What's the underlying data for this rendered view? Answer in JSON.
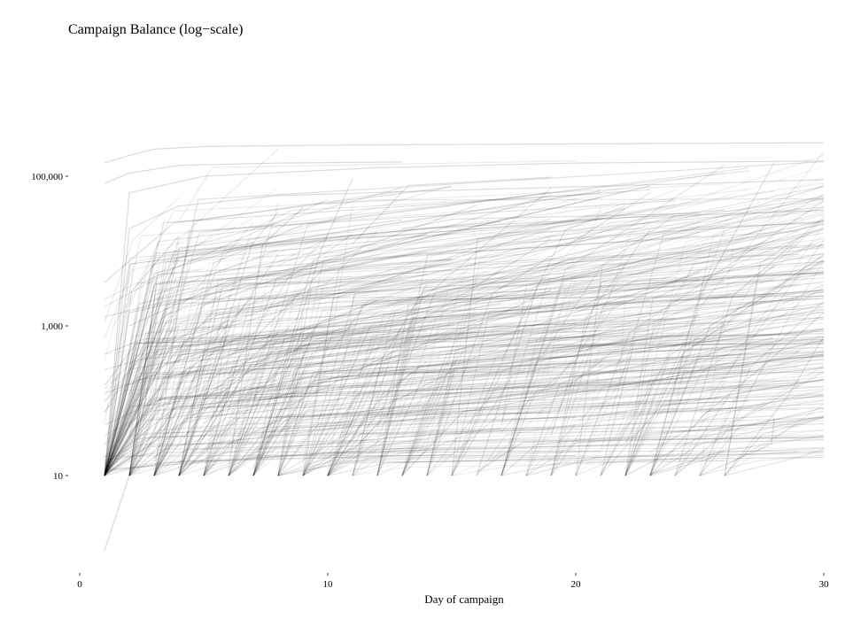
{
  "chart_data": {
    "type": "line",
    "title": "Campaign Balance (log−scale)",
    "xlabel": "Day of campaign",
    "ylabel": "",
    "xlim": [
      0,
      30
    ],
    "ylim": [
      1,
      300000
    ],
    "y_scale": "log",
    "grid": false,
    "legend": "none",
    "x_ticks": [
      {
        "value": 0,
        "label": "0"
      },
      {
        "value": 10,
        "label": "10"
      },
      {
        "value": 20,
        "label": "20"
      },
      {
        "value": 30,
        "label": "30"
      }
    ],
    "y_ticks": [
      {
        "value": 10,
        "label": "10"
      },
      {
        "value": 1000,
        "label": "1,000"
      },
      {
        "value": 100000,
        "label": "100,000"
      }
    ],
    "line_color": "#000000",
    "series": [
      {
        "x": [
          1,
          2,
          5,
          12,
          20,
          30
        ],
        "y": [
          10,
          60000,
          100000,
          130000,
          150000,
          160000
        ]
      },
      {
        "x": [
          1,
          2,
          4,
          8,
          15,
          25,
          30
        ],
        "y": [
          10,
          20000,
          40000,
          55000,
          65000,
          80000,
          90000
        ]
      },
      {
        "x": [
          1,
          3,
          7,
          14,
          22,
          30
        ],
        "y": [
          10,
          5000,
          12000,
          20000,
          28000,
          35000
        ]
      },
      {
        "x": [
          1,
          2,
          6,
          13,
          21,
          29
        ],
        "y": [
          10,
          1500,
          3000,
          5000,
          7500,
          9000
        ]
      },
      {
        "x": [
          1,
          4,
          9,
          16,
          24,
          30
        ],
        "y": [
          10,
          400,
          900,
          1500,
          2200,
          3000
        ]
      },
      {
        "x": [
          1,
          5,
          11,
          19,
          27
        ],
        "y": [
          10,
          80,
          150,
          220,
          300
        ]
      },
      {
        "x": [
          1,
          2,
          3,
          5,
          10,
          20,
          30
        ],
        "y": [
          150000,
          190000,
          230000,
          250000,
          260000,
          270000,
          280000
        ]
      },
      {
        "x": [
          1,
          2,
          4,
          8,
          13
        ],
        "y": [
          80000,
          110000,
          140000,
          150000,
          155000
        ]
      },
      {
        "x": [
          1,
          10,
          20,
          30
        ],
        "y": [
          12,
          20,
          25,
          30
        ]
      },
      {
        "x": [
          1,
          2
        ],
        "y": [
          1,
          10
        ]
      },
      {
        "x": [
          2,
          6,
          12,
          20,
          30
        ],
        "y": [
          1000,
          4000,
          8000,
          15000,
          25000
        ]
      },
      {
        "x": [
          5,
          8,
          15,
          25,
          30
        ],
        "y": [
          100,
          800,
          2000,
          4000,
          6000
        ]
      }
    ]
  }
}
